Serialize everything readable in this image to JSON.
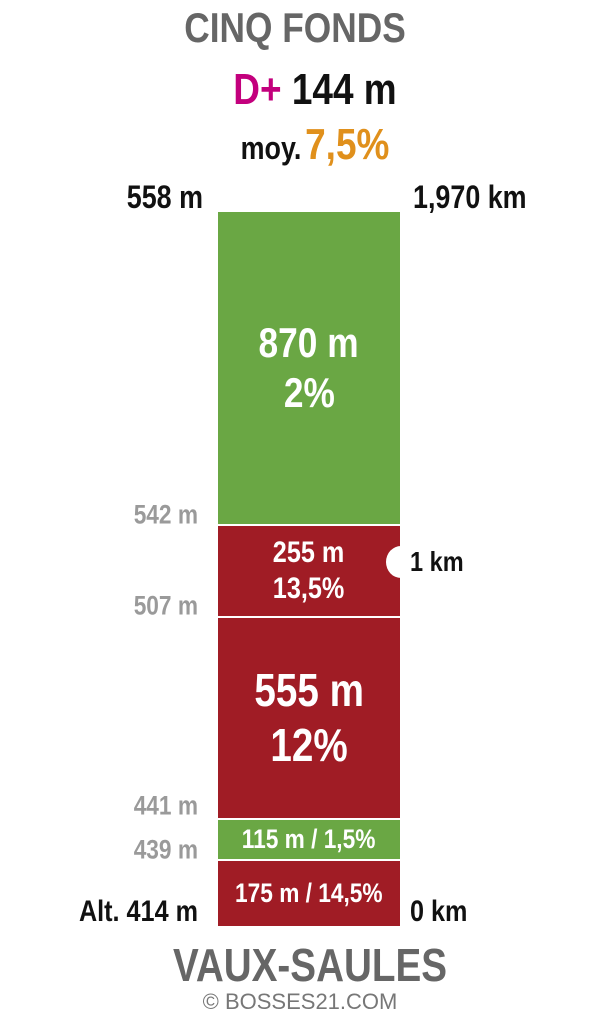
{
  "header": {
    "title": "CINQ FONDS",
    "gain_label": "D+",
    "gain": "144 m",
    "average_label": "moy.",
    "average": "7,5%"
  },
  "top": {
    "altitude": "558 m",
    "distance": "1,970 km"
  },
  "segments": [
    {
      "lines": [
        "870 m",
        "2%"
      ]
    },
    {
      "lines": [
        "255 m",
        "13,5%"
      ]
    },
    {
      "lines": [
        "555 m",
        "12%"
      ]
    },
    {
      "lines": [
        "115 m / 1,5%"
      ]
    },
    {
      "lines": [
        "175 m / 14,5%"
      ]
    }
  ],
  "altitudes": [
    "542 m",
    "507 m",
    "441 m",
    "439 m"
  ],
  "marker": "1 km",
  "bottom": {
    "altitude": "Alt. 414 m",
    "distance": "0 km"
  },
  "footer": {
    "name": "VAUX-SAULES",
    "credit": "© BOSSES21.COM"
  }
}
